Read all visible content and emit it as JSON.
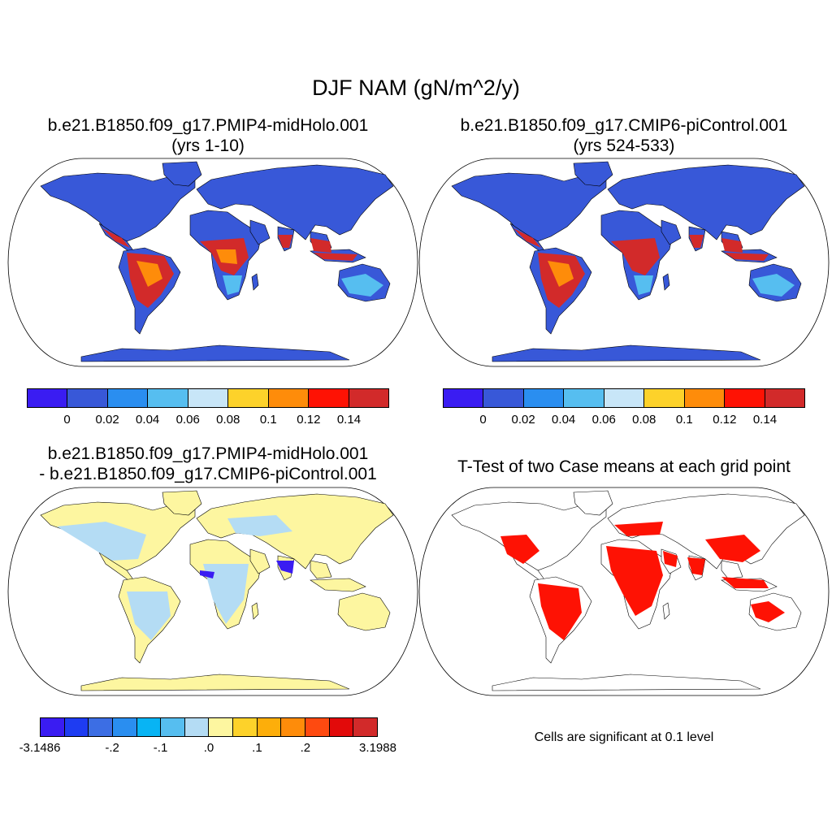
{
  "title": "DJF NAM (gN/m^2/y)",
  "panels": [
    {
      "title_line1": "b.e21.B1850.f09_g17.PMIP4-midHolo.001",
      "title_line2": "(yrs 1-10)"
    },
    {
      "title_line1": "b.e21.B1850.f09_g17.CMIP6-piControl.001",
      "title_line2": "(yrs 524-533)"
    },
    {
      "title_line1": "b.e21.B1850.f09_g17.PMIP4-midHolo.001",
      "title_line2": "- b.e21.B1850.f09_g17.CMIP6-piControl.001"
    },
    {
      "title_line1": "T-Test of two Case means at each grid point"
    }
  ],
  "colorbars": {
    "absolute": {
      "colors": [
        "#3a1cf2",
        "#3858d8",
        "#2a8ef0",
        "#56bef0",
        "#c8e6f8",
        "#fdd22a",
        "#fe8c0a",
        "#fe1204",
        "#d22a2a"
      ],
      "labels": [
        "0",
        "0.02",
        "0.04",
        "0.06",
        "0.08",
        "0.1",
        "0.12",
        "0.14"
      ]
    },
    "difference": {
      "colors": [
        "#3a1cf2",
        "#1e3cf2",
        "#3c6ee4",
        "#2a8ef0",
        "#08b4f4",
        "#56bef0",
        "#b4dcf4",
        "#fdf6a0",
        "#fdd22a",
        "#fdae0a",
        "#fe8c0a",
        "#fe4a10",
        "#e20a0a",
        "#d22a2a"
      ],
      "labels": [
        "-3.1486",
        "-.2",
        "-.1",
        ".0",
        ".1",
        ".2",
        "3.1988"
      ]
    }
  },
  "sig_note": "Cells are significant at 0.1 level",
  "map_colors": {
    "ocean": "#ffffff",
    "outline": "#000000",
    "abs_high": "#fe8c0a",
    "abs_low": "#3858d8",
    "abs_mid": "#56bef0",
    "abs_peak": "#d22a2a",
    "diff_base": "#fdf6a0",
    "diff_light": "#b4dcf4",
    "diff_neg": "#3a1cf2",
    "sig": "#fe1204"
  }
}
